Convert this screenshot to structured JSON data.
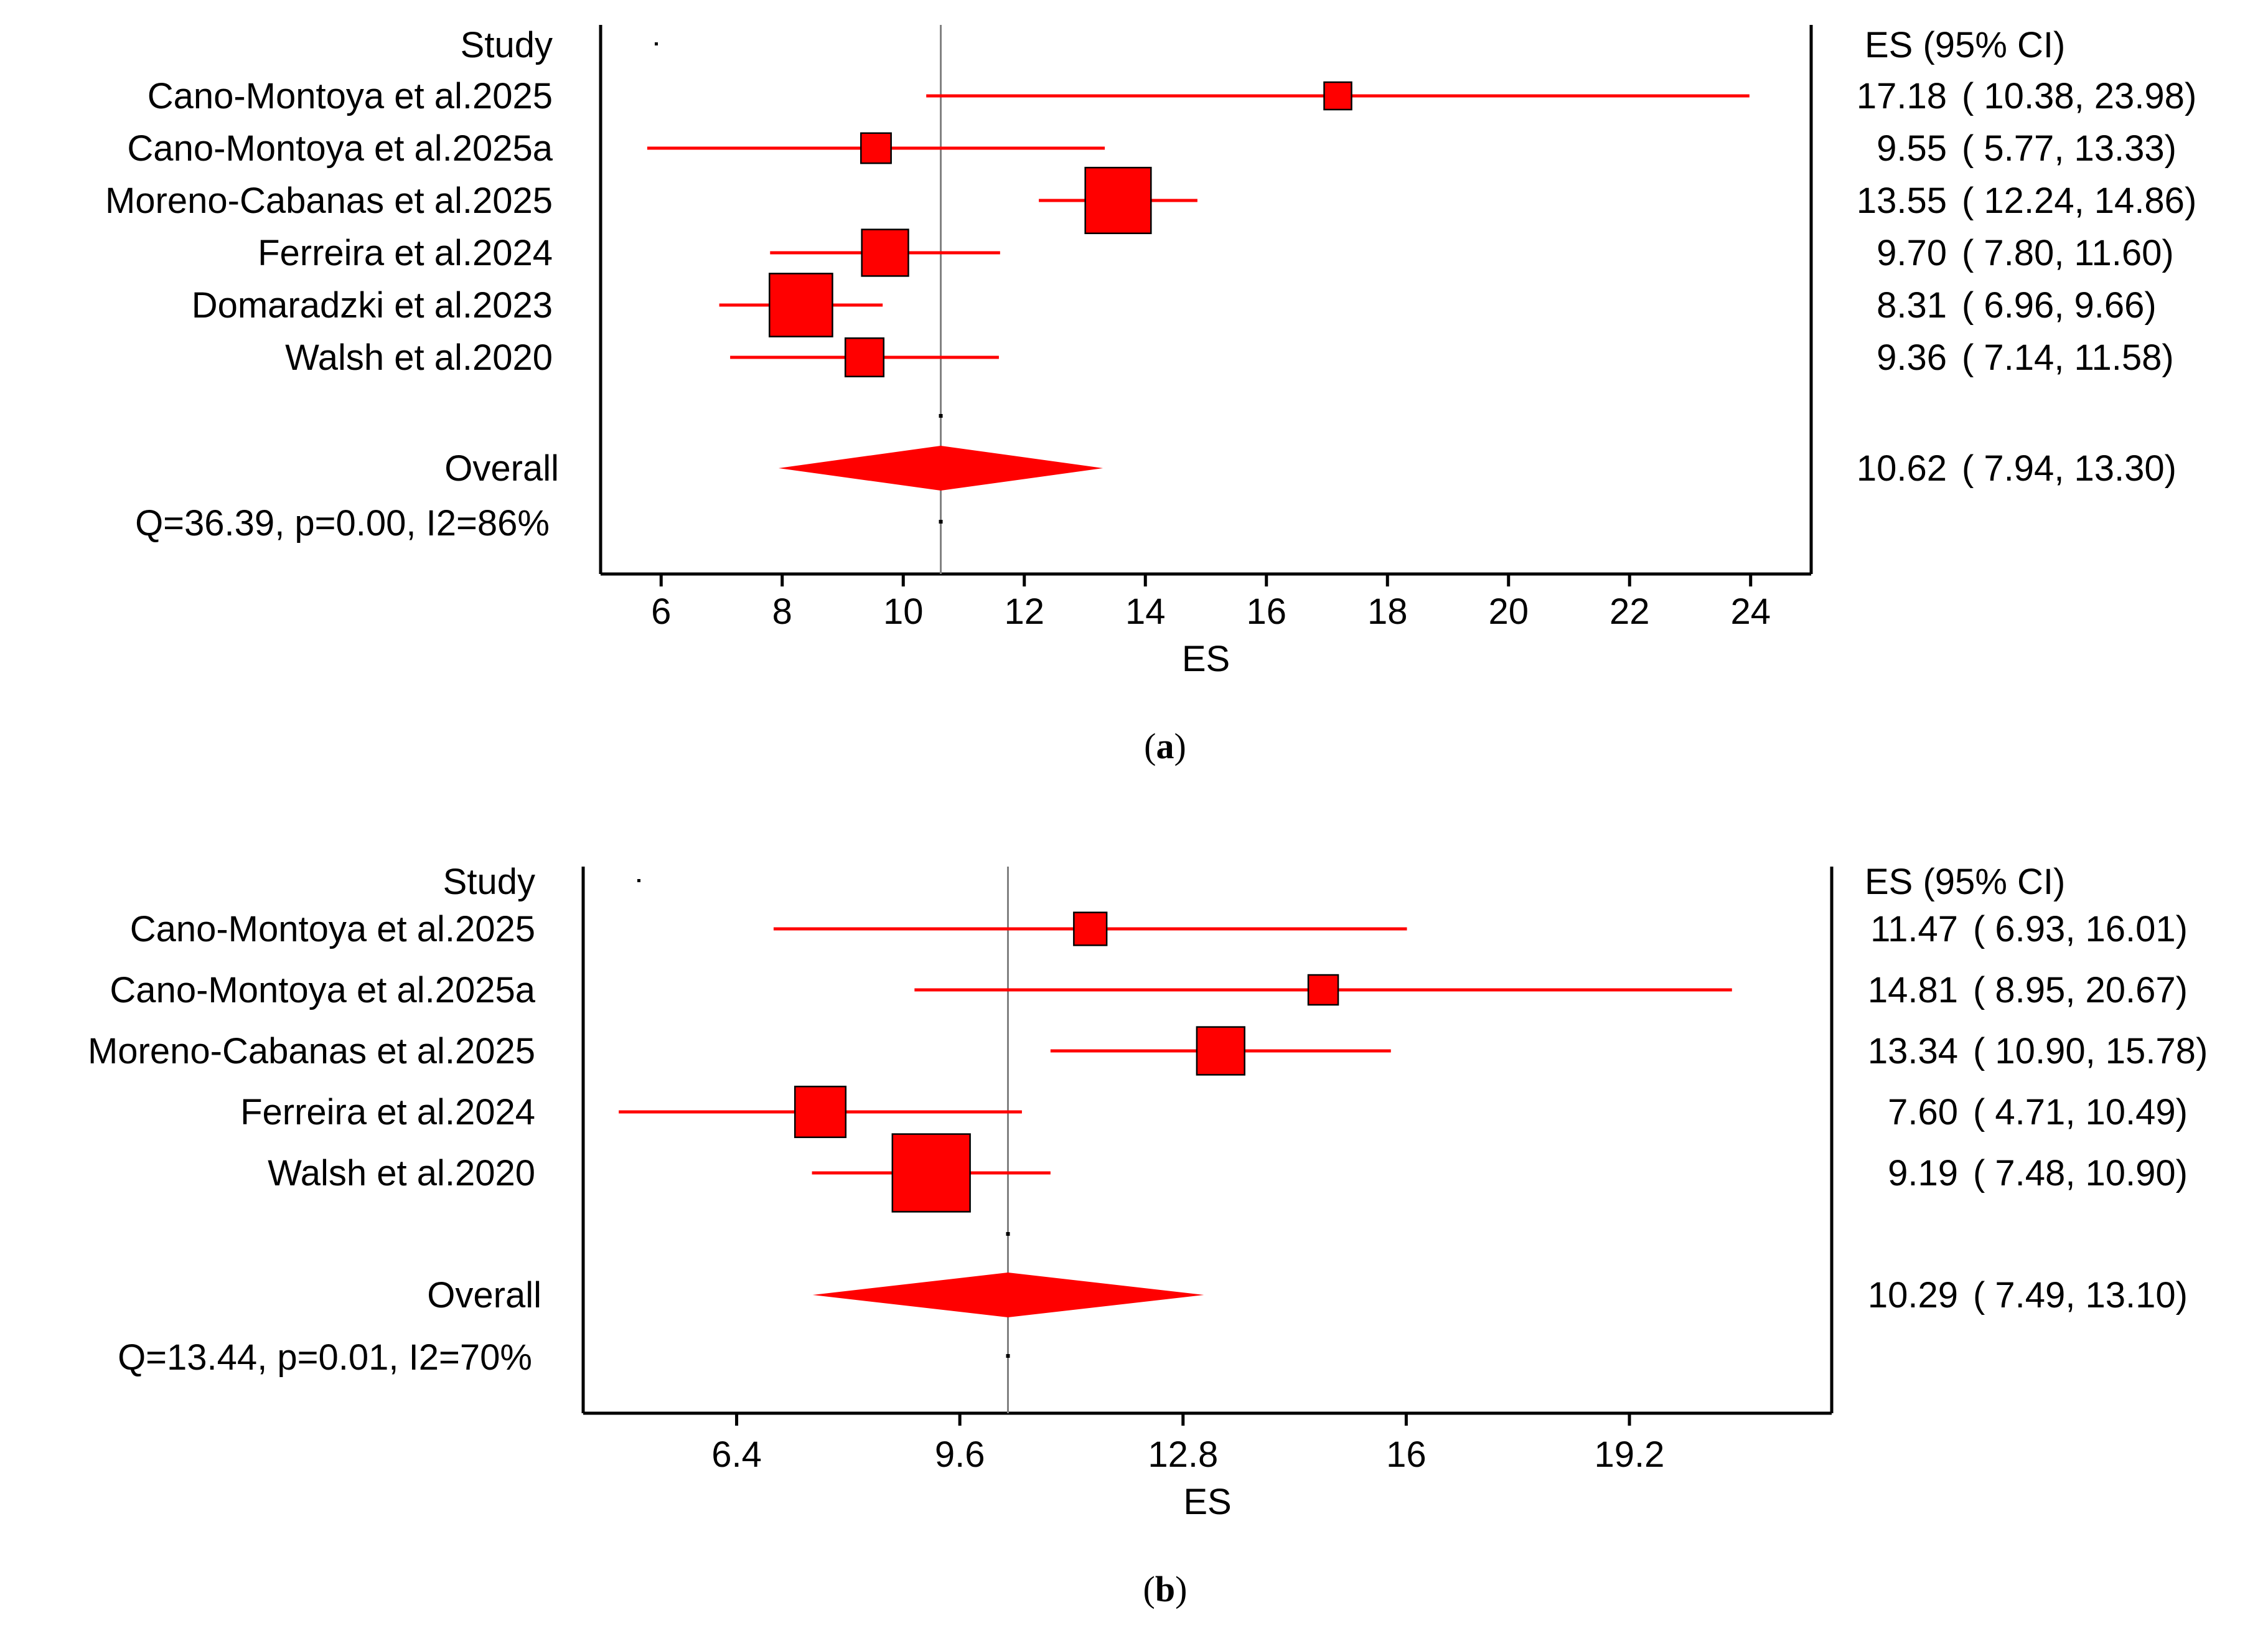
{
  "chart_data": [
    {
      "type": "forest",
      "panel_label": "a",
      "study_header": "Study",
      "es_header": "ES (95% CI)",
      "xlabel": "ES",
      "xlim": [
        5,
        25
      ],
      "xticks": [
        "6",
        "8",
        "10",
        "12",
        "14",
        "16",
        "18",
        "20",
        "22",
        "24"
      ],
      "xtick_values": [
        6,
        8,
        10,
        12,
        14,
        16,
        18,
        20,
        22,
        24
      ],
      "reference_line": 10.62,
      "studies": [
        {
          "name": "Cano-Montoya et al.2025",
          "es": 17.18,
          "lo": 10.38,
          "hi": 23.98,
          "weight": 1.0,
          "es_text": "17.18",
          "ci_text": "( 10.38, 23.98)"
        },
        {
          "name": "Cano-Montoya et al.2025a",
          "es": 9.55,
          "lo": 5.77,
          "hi": 13.33,
          "weight": 1.1,
          "es_text": "9.55",
          "ci_text": "(  5.77, 13.33)"
        },
        {
          "name": "Moreno-Cabanas et al.2025",
          "es": 13.55,
          "lo": 12.24,
          "hi": 14.86,
          "weight": 2.4,
          "es_text": "13.55",
          "ci_text": "( 12.24, 14.86)"
        },
        {
          "name": "Ferreira et al.2024",
          "es": 9.7,
          "lo": 7.8,
          "hi": 11.6,
          "weight": 1.7,
          "es_text": "9.70",
          "ci_text": "(  7.80, 11.60)"
        },
        {
          "name": "Domaradzki et al.2023",
          "es": 8.31,
          "lo": 6.96,
          "hi": 9.66,
          "weight": 2.3,
          "es_text": "8.31",
          "ci_text": "(  6.96,  9.66)"
        },
        {
          "name": "Walsh et al.2020",
          "es": 9.36,
          "lo": 7.14,
          "hi": 11.58,
          "weight": 1.4,
          "es_text": "9.36",
          "ci_text": "(  7.14, 11.58)"
        }
      ],
      "overall": {
        "label": "Overall",
        "es": 10.62,
        "lo": 7.94,
        "hi": 13.3,
        "es_text": "10.62",
        "ci_text": "(  7.94, 13.30)"
      },
      "heterogeneity": "Q=36.39, p=0.00, I2=86%"
    },
    {
      "type": "forest",
      "panel_label": "b",
      "study_header": "Study",
      "es_header": "ES (95% CI)",
      "xlabel": "ES",
      "xlim": [
        4.2,
        22.1
      ],
      "xticks": [
        "6.4",
        "9.6",
        "12.8",
        "16",
        "19.2"
      ],
      "xtick_values": [
        6.4,
        9.6,
        12.8,
        16,
        19.2
      ],
      "reference_line": 10.29,
      "studies": [
        {
          "name": "Cano-Montoya et al.2025",
          "es": 11.47,
          "lo": 6.93,
          "hi": 16.01,
          "weight": 1.1,
          "es_text": "11.47",
          "ci_text": "(  6.93, 16.01)"
        },
        {
          "name": "Cano-Montoya et al.2025a",
          "es": 14.81,
          "lo": 8.95,
          "hi": 20.67,
          "weight": 1.0,
          "es_text": "14.81",
          "ci_text": "(  8.95, 20.67)"
        },
        {
          "name": "Moreno-Cabanas et al.2025",
          "es": 13.34,
          "lo": 10.9,
          "hi": 15.78,
          "weight": 1.6,
          "es_text": "13.34",
          "ci_text": "( 10.90, 15.78)"
        },
        {
          "name": "Ferreira et al.2024",
          "es": 7.6,
          "lo": 4.71,
          "hi": 10.49,
          "weight": 1.7,
          "es_text": "7.60",
          "ci_text": "(  4.71, 10.49)"
        },
        {
          "name": "Walsh et al.2020",
          "es": 9.19,
          "lo": 7.48,
          "hi": 10.9,
          "weight": 2.6,
          "es_text": "9.19",
          "ci_text": "(  7.48, 10.90)"
        }
      ],
      "overall": {
        "label": "Overall",
        "es": 10.29,
        "lo": 7.49,
        "hi": 13.1,
        "es_text": "10.29",
        "ci_text": "(  7.49, 13.10)"
      },
      "heterogeneity": "Q=13.44, p=0.01, I2=70%"
    }
  ],
  "colors": {
    "marker": "#ff0000",
    "ci_line": "#ff0000",
    "axis": "#000000",
    "ref_line": "#808080",
    "text": "#000000"
  }
}
